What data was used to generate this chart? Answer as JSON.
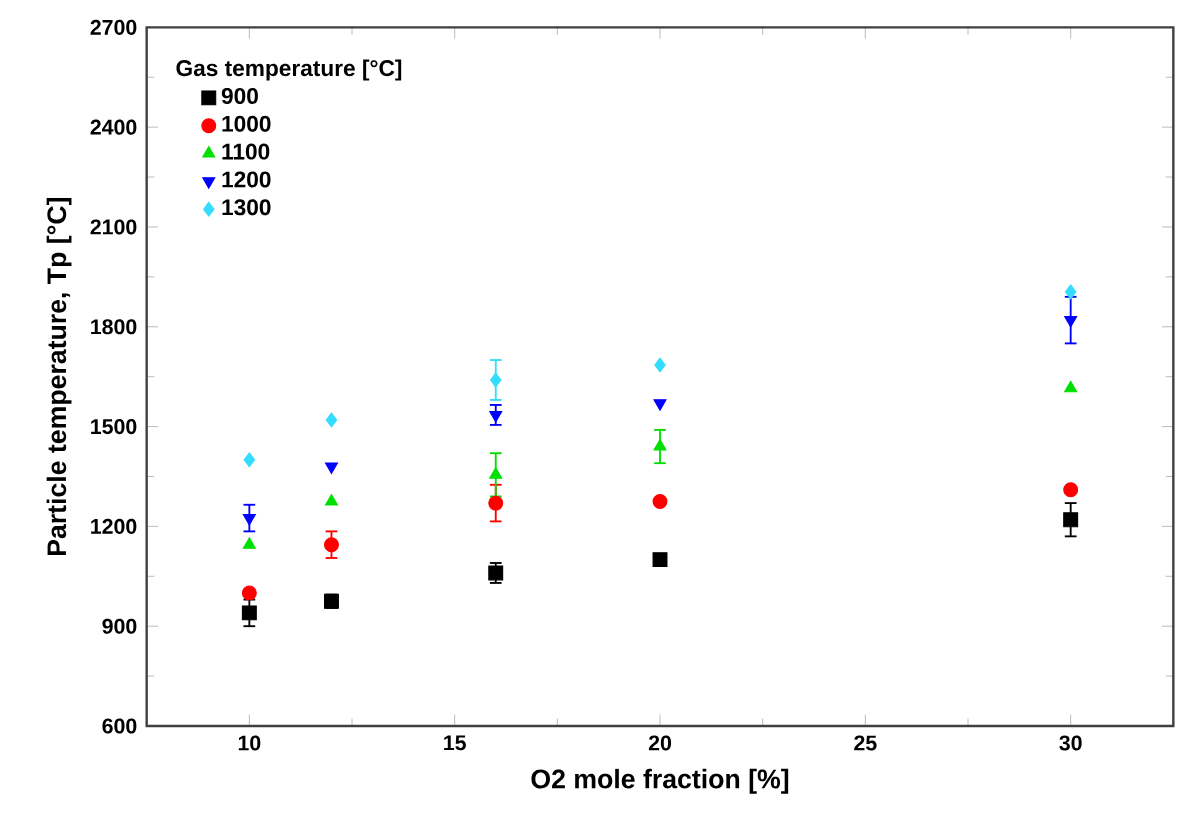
{
  "chart_data": {
    "type": "scatter",
    "xlabel": "O2 mole fraction [%]",
    "ylabel": "Particle temperature, Tp [°C]",
    "legend_title": "Gas temperature [°C]",
    "legend": "top left",
    "grid": false,
    "x": [
      10,
      12,
      16,
      20,
      30
    ],
    "xlim": [
      7.5,
      32.5
    ],
    "xticks": [
      10,
      15,
      20,
      25,
      30
    ],
    "ylim": [
      600,
      2700
    ],
    "yticks": [
      600,
      900,
      1200,
      1500,
      1800,
      2100,
      2400,
      2700
    ],
    "series": [
      {
        "name": "900",
        "color": "#000000",
        "marker": "square",
        "values": [
          940,
          975,
          1060,
          1100,
          1220
        ],
        "errors": [
          40,
          20,
          30,
          null,
          50
        ]
      },
      {
        "name": "1000",
        "color": "#ff0000",
        "marker": "circle",
        "values": [
          1000,
          1145,
          1270,
          1275,
          1310
        ],
        "errors": [
          null,
          40,
          55,
          null,
          null
        ]
      },
      {
        "name": "1100",
        "color": "#00e000",
        "marker": "triangle",
        "values": [
          1145,
          1275,
          1355,
          1440,
          1615
        ],
        "errors": [
          null,
          null,
          65,
          50,
          null
        ]
      },
      {
        "name": "1200",
        "color": "#0000ff",
        "marker": "triangle-down",
        "values": [
          1225,
          1380,
          1535,
          1570,
          1820
        ],
        "errors": [
          40,
          null,
          30,
          null,
          70
        ]
      },
      {
        "name": "1300",
        "color": "#33ddff",
        "marker": "diamond",
        "values": [
          1400,
          1520,
          1640,
          1685,
          1905
        ],
        "errors": [
          null,
          null,
          60,
          null,
          null
        ]
      }
    ]
  }
}
